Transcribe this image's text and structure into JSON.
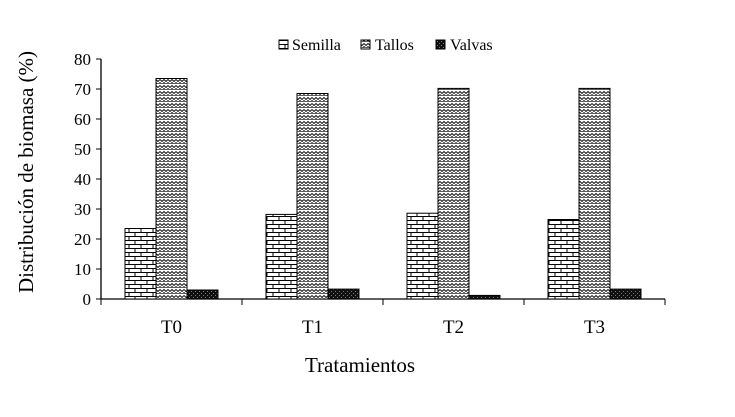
{
  "chart_data": {
    "type": "bar",
    "title": "",
    "xlabel": "Tratamientos",
    "ylabel": "Distribución de biomasa (%)",
    "ylim": [
      0,
      80
    ],
    "yticks": [
      0,
      10,
      20,
      30,
      40,
      50,
      60,
      70,
      80
    ],
    "categories": [
      "T0",
      "T1",
      "T2",
      "T3"
    ],
    "legend_position": "top-center",
    "grid": false,
    "series": [
      {
        "name": "Semilla",
        "values": [
          23.5,
          28.2,
          28.6,
          26.5
        ],
        "pattern": "brick"
      },
      {
        "name": "Tallos",
        "values": [
          73.5,
          68.5,
          70.2,
          70.2
        ],
        "pattern": "zigzag"
      },
      {
        "name": "Valvas",
        "values": [
          3.0,
          3.3,
          1.2,
          3.3
        ],
        "pattern": "dense-dark"
      }
    ]
  }
}
